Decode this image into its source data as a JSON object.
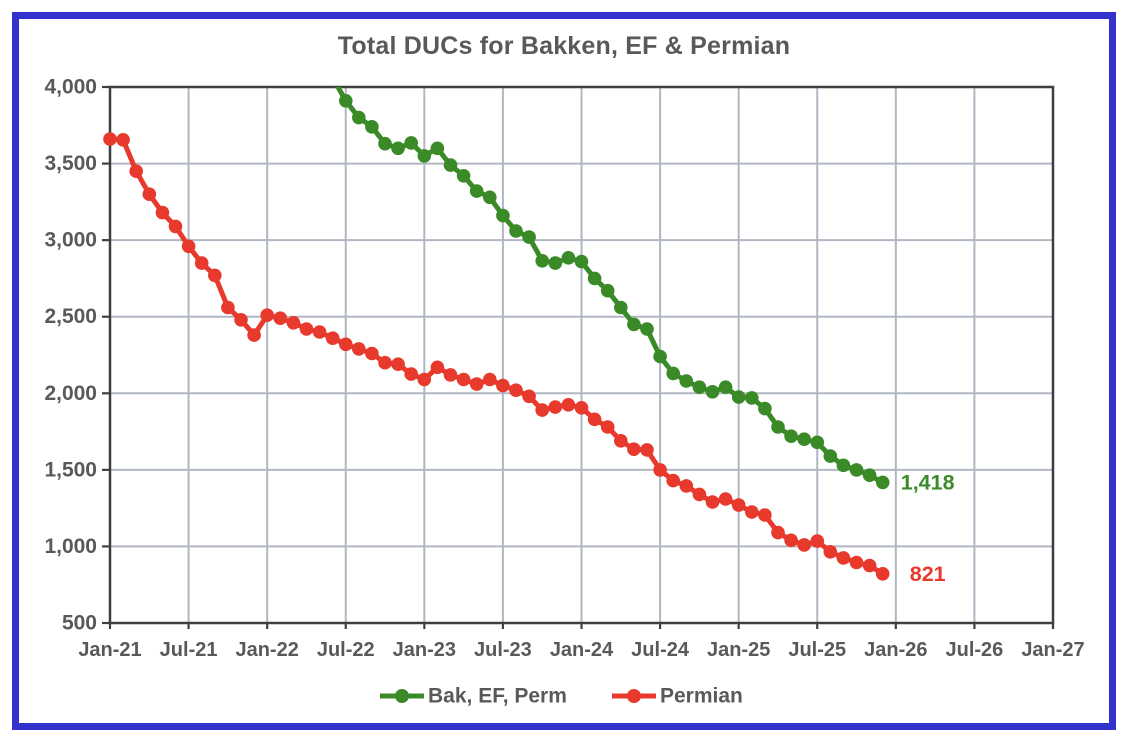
{
  "chart_data": {
    "type": "line",
    "title": "Total DUCs for Bakken, EF & Permian",
    "grid": true,
    "legend_position": "bottom",
    "text_color": "#595959",
    "x_axis": {
      "tick_labels": [
        "Jan-21",
        "Jul-21",
        "Jan-22",
        "Jul-22",
        "Jan-23",
        "Jul-23",
        "Jan-24",
        "Jul-24",
        "Jan-25",
        "Jul-25",
        "Jan-26",
        "Jul-26",
        "Jan-27"
      ],
      "months_per_tick": 6,
      "total_months": 72
    },
    "y_axis": {
      "tick_labels": [
        "4,000",
        "3,500",
        "3,000",
        "2,500",
        "2,000",
        "1,500",
        "1,000",
        "500"
      ],
      "tick_values": [
        4000,
        3500,
        3000,
        2500,
        2000,
        1500,
        1000,
        500
      ],
      "min": 500,
      "max": 4000
    },
    "series": [
      {
        "name": "Bak, EF, Perm",
        "color": "#3a8a28",
        "start_month_label": "Jun-22",
        "start_month_index": 17,
        "end_label": "1,418",
        "values": [
          4060,
          3910,
          3800,
          3740,
          3630,
          3600,
          3635,
          3550,
          3600,
          3490,
          3420,
          3320,
          3280,
          3160,
          3060,
          3020,
          2865,
          2850,
          2885,
          2860,
          2750,
          2670,
          2560,
          2450,
          2420,
          2240,
          2130,
          2080,
          2040,
          2010,
          2040,
          1975,
          1970,
          1900,
          1780,
          1720,
          1700,
          1680,
          1590,
          1530,
          1500,
          1465,
          1418
        ]
      },
      {
        "name": "Permian",
        "color": "#e8392d",
        "start_month_label": "Jan-21",
        "start_month_index": 0,
        "end_label": "821",
        "values": [
          3660,
          3655,
          3450,
          3300,
          3180,
          3090,
          2960,
          2850,
          2770,
          2560,
          2480,
          2380,
          2510,
          2490,
          2460,
          2420,
          2400,
          2360,
          2320,
          2290,
          2260,
          2200,
          2190,
          2125,
          2090,
          2170,
          2120,
          2090,
          2060,
          2090,
          2050,
          2020,
          1980,
          1890,
          1910,
          1925,
          1905,
          1830,
          1780,
          1690,
          1635,
          1630,
          1500,
          1430,
          1395,
          1340,
          1290,
          1310,
          1270,
          1225,
          1205,
          1090,
          1040,
          1010,
          1035,
          965,
          925,
          895,
          875,
          821
        ]
      }
    ]
  },
  "frame": {
    "border_color": "#3432cd"
  }
}
